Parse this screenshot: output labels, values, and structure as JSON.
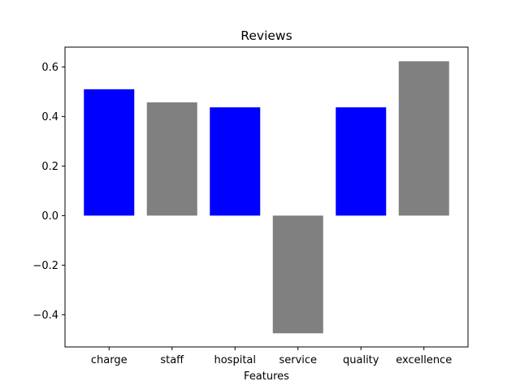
{
  "chart_data": {
    "type": "bar",
    "title": "Reviews",
    "xlabel": "Features",
    "ylabel": "",
    "categories": [
      "charge",
      "staff",
      "hospital",
      "service",
      "quality",
      "excellence"
    ],
    "values": [
      0.51,
      0.457,
      0.437,
      -0.475,
      0.437,
      0.623
    ],
    "colors": [
      "#0000ff",
      "#808080",
      "#0000ff",
      "#808080",
      "#0000ff",
      "#808080"
    ],
    "ylim": [
      -0.53,
      0.68
    ],
    "yticks": [
      -0.4,
      -0.2,
      0.0,
      0.2,
      0.4,
      0.6
    ],
    "ytick_labels": [
      "−0.4",
      "−0.2",
      "0.0",
      "0.2",
      "0.4",
      "0.6"
    ],
    "grid": false
  }
}
